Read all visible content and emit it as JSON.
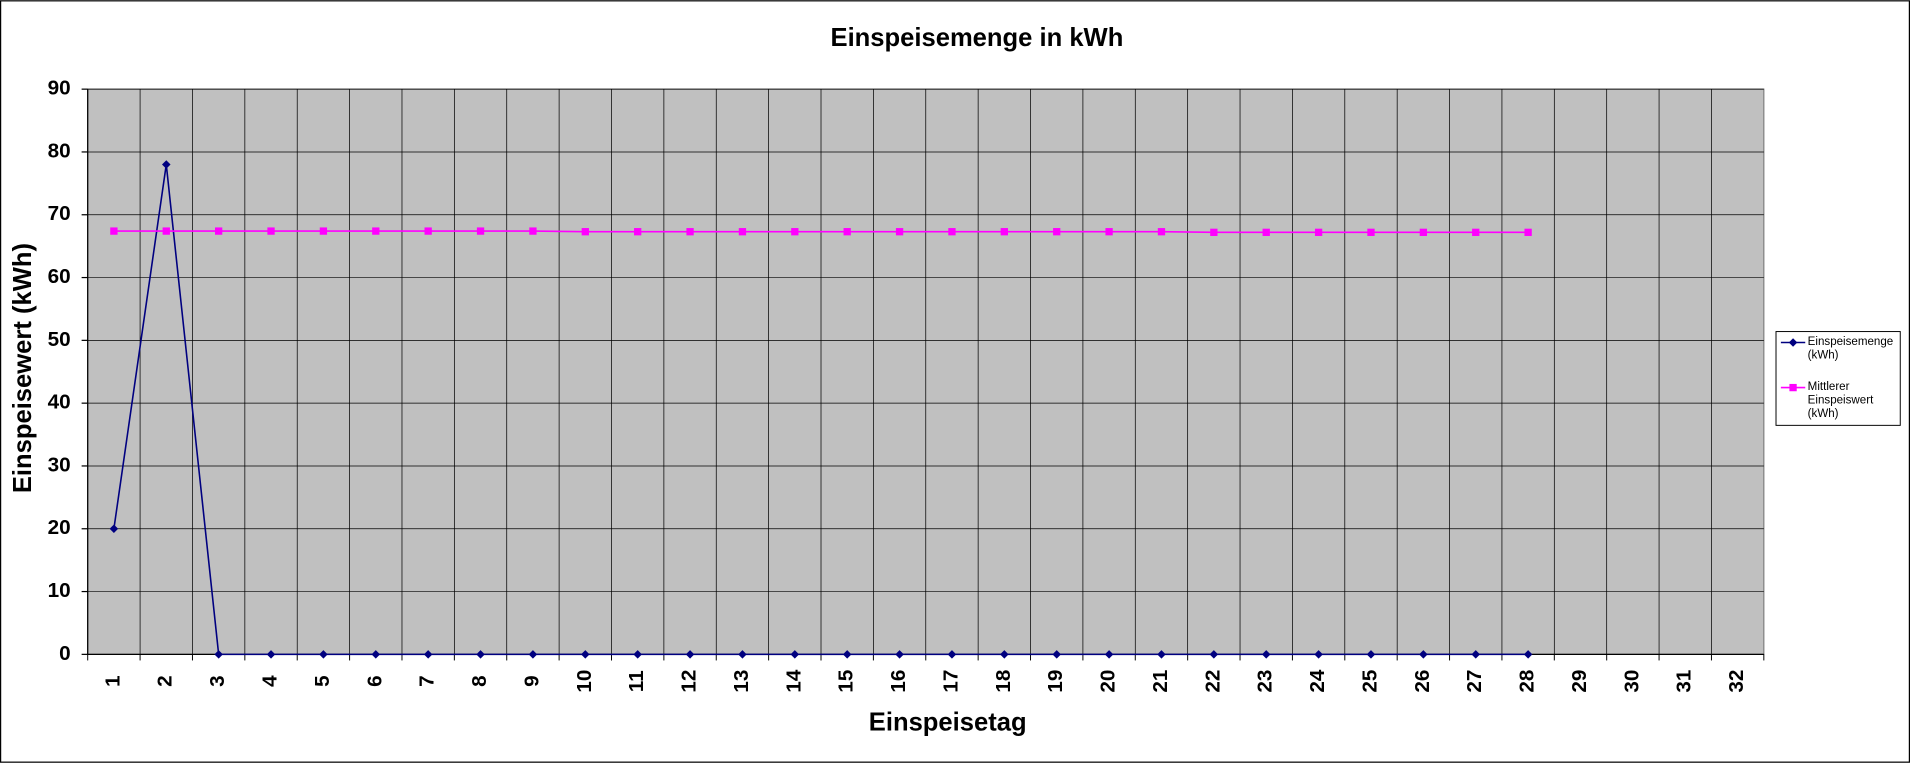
{
  "chart_data": {
    "type": "line",
    "title": "Einspeisemenge in kWh",
    "x_label": "Einspeisetag",
    "y_label": "Einspeisewert (kWh)",
    "categories": [
      "1",
      "2",
      "3",
      "4",
      "5",
      "6",
      "7",
      "8",
      "9",
      "10",
      "11",
      "12",
      "13",
      "14",
      "15",
      "16",
      "17",
      "18",
      "19",
      "20",
      "21",
      "22",
      "23",
      "24",
      "25",
      "26",
      "27",
      "28",
      "29",
      "30",
      "31",
      "32"
    ],
    "series": [
      {
        "name": "Einspeisemenge (kWh)",
        "color": "#000080",
        "marker": "diamond",
        "values": [
          20,
          78,
          0,
          0,
          0,
          0,
          0,
          0,
          0,
          0,
          0,
          0,
          0,
          0,
          0,
          0,
          0,
          0,
          0,
          0,
          0,
          0,
          0,
          0,
          0,
          0,
          0,
          0,
          null,
          null,
          null,
          null
        ]
      },
      {
        "name": "Mittlerer Einspeiswert (kWh)",
        "color": "#ff00ff",
        "marker": "square",
        "values": [
          67.4,
          67.4,
          67.4,
          67.4,
          67.4,
          67.4,
          67.4,
          67.4,
          67.4,
          67.3,
          67.3,
          67.3,
          67.3,
          67.3,
          67.3,
          67.3,
          67.3,
          67.3,
          67.3,
          67.3,
          67.3,
          67.2,
          67.2,
          67.2,
          67.2,
          67.2,
          67.2,
          67.2,
          null,
          null,
          null,
          null
        ]
      }
    ],
    "ylim": [
      0,
      90
    ],
    "yticks": [
      0,
      10,
      20,
      30,
      40,
      50,
      60,
      70,
      80,
      90
    ],
    "grid": true,
    "legend": "right"
  }
}
